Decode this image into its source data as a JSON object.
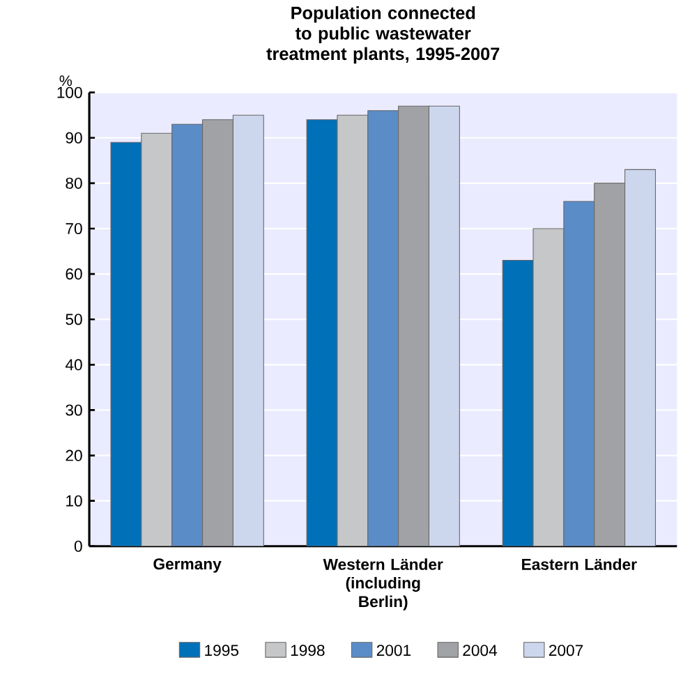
{
  "chart_data": {
    "type": "bar",
    "title": "Population connected to public wastewater treatment plants, 1995-2007",
    "ylabel": "%",
    "categories": [
      "Germany",
      "Western Länder (including Berlin)",
      "Eastern Länder"
    ],
    "series": [
      {
        "name": "1995",
        "color": "#0070b8",
        "values": [
          89,
          94,
          63
        ]
      },
      {
        "name": "1998",
        "color": "#c6c7c9",
        "values": [
          91,
          95,
          70
        ]
      },
      {
        "name": "2001",
        "color": "#5a8dc8",
        "values": [
          93,
          96,
          76
        ]
      },
      {
        "name": "2004",
        "color": "#a0a2a5",
        "values": [
          94,
          97,
          80
        ]
      },
      {
        "name": "2007",
        "color": "#ccd7ee",
        "values": [
          95,
          97,
          83
        ]
      }
    ],
    "ylim": [
      0,
      100
    ],
    "yticks": [
      0,
      10,
      20,
      30,
      40,
      50,
      60,
      70,
      80,
      90,
      100
    ],
    "grid": "y",
    "legend": "bottom"
  }
}
